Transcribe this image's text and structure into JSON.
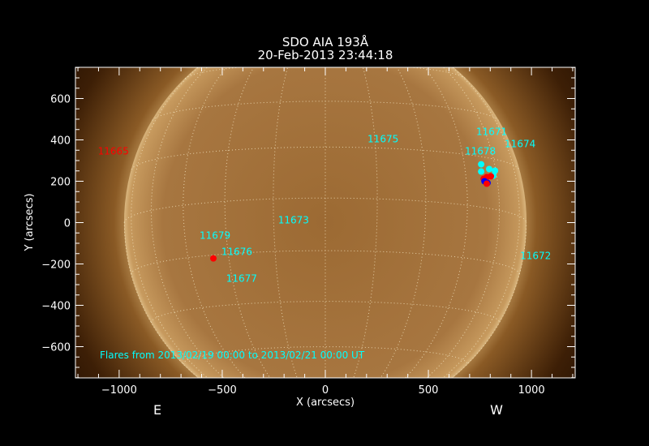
{
  "chart_data": {
    "type": "scatter",
    "title": "SDO AIA 193Å",
    "subtitle": "20-Feb-2013 23:44:18",
    "xlabel": "X (arcsecs)",
    "ylabel": "Y (arcsecs)",
    "xlim": [
      -1212,
      1212
    ],
    "ylim": [
      -751,
      751
    ],
    "xticks": [
      -1000,
      -500,
      0,
      500,
      1000
    ],
    "yticks": [
      -600,
      -400,
      -200,
      0,
      200,
      400,
      600
    ],
    "grid": true,
    "solar_radius_arcsec": 975,
    "east_label": "E",
    "west_label": "W",
    "footnote": "Flares from 2013/02/19 00:00 to 2013/02/21 00:00 UT",
    "colors": {
      "background": "#000000",
      "axes": "#ffffff",
      "label": "#00ffff",
      "flare_red": "#ff0000",
      "flare_blue": "#0000ff",
      "flare_cyan": "#00ffff"
    },
    "active_regions": [
      {
        "label": "11665",
        "x": -1028,
        "y": 345,
        "color": "#ff0000"
      },
      {
        "label": "11675",
        "x": 280,
        "y": 404,
        "color": "#00ffff"
      },
      {
        "label": "11671",
        "x": 807,
        "y": 439,
        "color": "#00ffff"
      },
      {
        "label": "11674",
        "x": 945,
        "y": 380,
        "color": "#00ffff"
      },
      {
        "label": "11678",
        "x": 752,
        "y": 345,
        "color": "#00ffff"
      },
      {
        "label": "11673",
        "x": -154,
        "y": 12,
        "color": "#00ffff"
      },
      {
        "label": "11679",
        "x": -535,
        "y": -63,
        "color": "#00ffff"
      },
      {
        "label": "11676",
        "x": -429,
        "y": -141,
        "color": "#00ffff"
      },
      {
        "label": "11677",
        "x": -406,
        "y": -271,
        "color": "#00ffff"
      },
      {
        "label": "11672",
        "x": 1020,
        "y": -161,
        "color": "#00ffff"
      }
    ],
    "flares": [
      {
        "x": 756,
        "y": 282,
        "color": "#00ffff"
      },
      {
        "x": 756,
        "y": 247,
        "color": "#00ffff"
      },
      {
        "x": 795,
        "y": 259,
        "color": "#00ffff"
      },
      {
        "x": 823,
        "y": 251,
        "color": "#00ffff"
      },
      {
        "x": 815,
        "y": 227,
        "color": "#00ffff"
      },
      {
        "x": 783,
        "y": 220,
        "color": "#ff0000"
      },
      {
        "x": 768,
        "y": 212,
        "color": "#ff0000"
      },
      {
        "x": 772,
        "y": 200,
        "color": "#0000ff"
      },
      {
        "x": 787,
        "y": 192,
        "color": "#0000ff"
      },
      {
        "x": 803,
        "y": 224,
        "color": "#ff0000"
      },
      {
        "x": 783,
        "y": 188,
        "color": "#ff0000"
      },
      {
        "x": -543,
        "y": -173,
        "color": "#ff0000"
      }
    ]
  }
}
